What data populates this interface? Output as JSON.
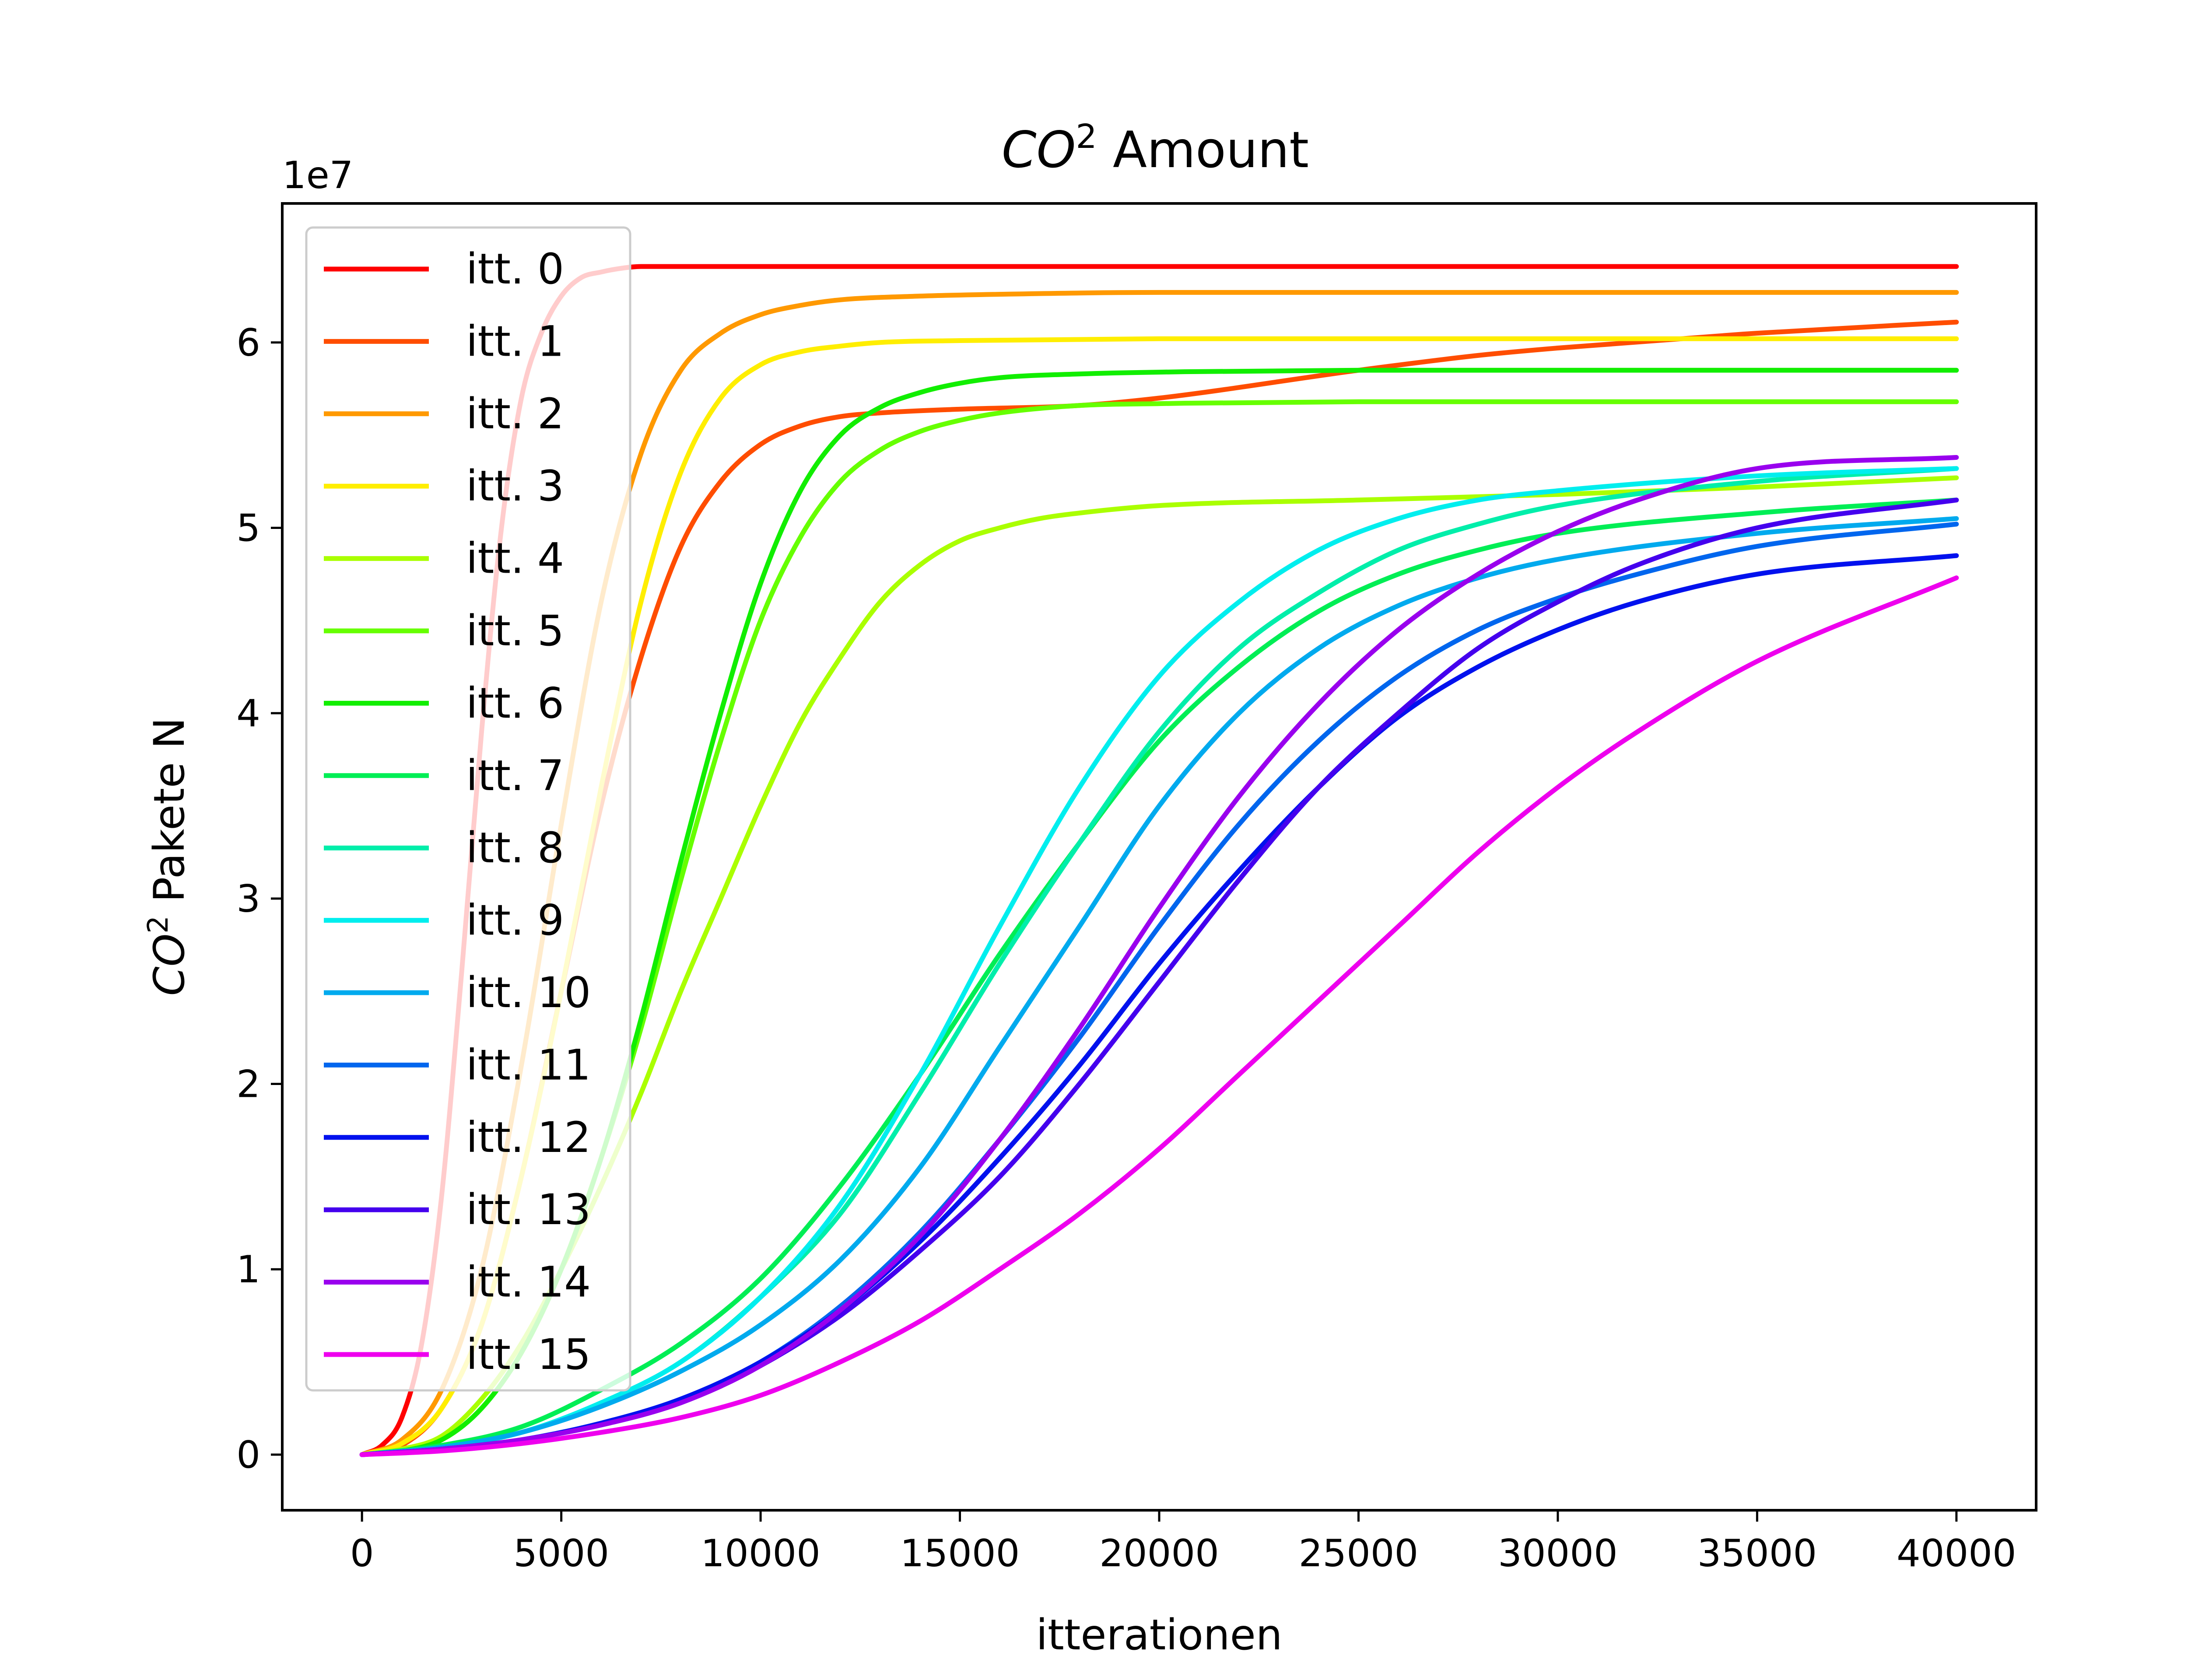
{
  "chart_data": {
    "type": "line",
    "title": {
      "main": "CO",
      "sup": "2",
      "rest": " Amount"
    },
    "xlabel": "itterationen",
    "ylabel": {
      "main": "CO",
      "sup": "2",
      "rest": " Pakete N"
    },
    "y_offset_label": "1e7",
    "xlim": [
      -2000,
      42000
    ],
    "ylim": [
      -0.3,
      6.75
    ],
    "y_scale_factor": 10000000,
    "x_ticks": [
      0,
      5000,
      10000,
      15000,
      20000,
      25000,
      30000,
      35000,
      40000
    ],
    "x_tick_labels": [
      "0",
      "5000",
      "10000",
      "15000",
      "20000",
      "25000",
      "30000",
      "35000",
      "40000"
    ],
    "y_ticks": [
      0,
      1,
      2,
      3,
      4,
      5,
      6
    ],
    "y_tick_labels": [
      "0",
      "1",
      "2",
      "3",
      "4",
      "5",
      "6"
    ],
    "grid": false,
    "legend_position": "upper-left",
    "series": [
      {
        "name": "itt. 0",
        "color": "#ff0000",
        "x": [
          0,
          500,
          1000,
          1500,
          2000,
          2500,
          3000,
          3500,
          4000,
          4500,
          5000,
          5500,
          6000,
          6500,
          7000,
          8000,
          10000,
          20000,
          30000,
          40000
        ],
        "values": [
          0,
          0.05,
          0.2,
          0.6,
          1.4,
          2.6,
          3.9,
          5.0,
          5.7,
          6.05,
          6.25,
          6.35,
          6.38,
          6.4,
          6.41,
          6.41,
          6.41,
          6.41,
          6.41,
          6.41
        ]
      },
      {
        "name": "itt. 1",
        "color": "#ff4d00",
        "x": [
          0,
          1000,
          2000,
          3000,
          4000,
          5000,
          6000,
          7000,
          8000,
          9000,
          10000,
          11000,
          12000,
          13000,
          15000,
          18000,
          20000,
          25000,
          28000,
          30000,
          35000,
          40000
        ],
        "values": [
          0,
          0.05,
          0.25,
          0.7,
          1.5,
          2.5,
          3.5,
          4.3,
          4.9,
          5.25,
          5.45,
          5.55,
          5.6,
          5.62,
          5.64,
          5.66,
          5.7,
          5.85,
          5.93,
          5.97,
          6.05,
          6.11
        ]
      },
      {
        "name": "itt. 2",
        "color": "#ff9900",
        "x": [
          0,
          1000,
          2000,
          3000,
          4000,
          5000,
          6000,
          7000,
          8000,
          9000,
          10000,
          11000,
          12000,
          14000,
          16000,
          20000,
          30000,
          40000
        ],
        "values": [
          0,
          0.08,
          0.35,
          1.0,
          2.1,
          3.4,
          4.6,
          5.4,
          5.85,
          6.05,
          6.15,
          6.2,
          6.23,
          6.25,
          6.26,
          6.27,
          6.27,
          6.27
        ]
      },
      {
        "name": "itt. 3",
        "color": "#ffee00",
        "x": [
          0,
          1000,
          2000,
          3000,
          4000,
          5000,
          6000,
          7000,
          8000,
          9000,
          10000,
          11000,
          12000,
          13000,
          15000,
          20000,
          30000,
          40000
        ],
        "values": [
          0,
          0.06,
          0.25,
          0.7,
          1.5,
          2.5,
          3.6,
          4.6,
          5.3,
          5.7,
          5.88,
          5.95,
          5.98,
          6.0,
          6.01,
          6.02,
          6.02,
          6.02
        ]
      },
      {
        "name": "itt. 4",
        "color": "#aaff00",
        "x": [
          0,
          1000,
          2000,
          3000,
          4000,
          5000,
          6000,
          7000,
          8000,
          9000,
          10000,
          11000,
          12000,
          13000,
          14000,
          15000,
          16000,
          17000,
          18000,
          20000,
          25000,
          30000,
          35000,
          40000
        ],
        "values": [
          0,
          0.03,
          0.1,
          0.3,
          0.6,
          1.0,
          1.45,
          1.95,
          2.5,
          3.0,
          3.5,
          3.95,
          4.3,
          4.6,
          4.8,
          4.93,
          5.0,
          5.05,
          5.08,
          5.12,
          5.15,
          5.18,
          5.22,
          5.27
        ]
      },
      {
        "name": "itt. 5",
        "color": "#66ff00",
        "x": [
          0,
          1000,
          2000,
          3000,
          4000,
          5000,
          6000,
          7000,
          8000,
          9000,
          10000,
          11000,
          12000,
          13000,
          14000,
          15000,
          16000,
          18000,
          20000,
          25000,
          30000,
          40000
        ],
        "values": [
          0,
          0.02,
          0.08,
          0.25,
          0.55,
          1.0,
          1.6,
          2.3,
          3.1,
          3.85,
          4.5,
          4.95,
          5.25,
          5.42,
          5.52,
          5.58,
          5.62,
          5.66,
          5.67,
          5.68,
          5.68,
          5.68
        ]
      },
      {
        "name": "itt. 6",
        "color": "#11ee00",
        "x": [
          0,
          1000,
          2000,
          3000,
          4000,
          5000,
          6000,
          7000,
          8000,
          9000,
          10000,
          11000,
          12000,
          13000,
          14000,
          15000,
          16000,
          18000,
          20000,
          25000,
          30000,
          40000
        ],
        "values": [
          0,
          0.02,
          0.08,
          0.25,
          0.55,
          1.0,
          1.6,
          2.35,
          3.2,
          4.0,
          4.7,
          5.2,
          5.5,
          5.65,
          5.73,
          5.78,
          5.81,
          5.83,
          5.84,
          5.85,
          5.85,
          5.85
        ]
      },
      {
        "name": "itt. 7",
        "color": "#00ee55",
        "x": [
          0,
          2000,
          4000,
          6000,
          8000,
          10000,
          12000,
          14000,
          16000,
          18000,
          20000,
          22000,
          24000,
          26000,
          28000,
          30000,
          35000,
          40000
        ],
        "values": [
          0,
          0.05,
          0.15,
          0.35,
          0.6,
          0.95,
          1.45,
          2.05,
          2.7,
          3.3,
          3.85,
          4.25,
          4.55,
          4.75,
          4.88,
          4.97,
          5.08,
          5.15
        ]
      },
      {
        "name": "itt. 8",
        "color": "#00eeaa",
        "x": [
          0,
          2000,
          4000,
          6000,
          8000,
          10000,
          12000,
          14000,
          16000,
          18000,
          20000,
          22000,
          24000,
          26000,
          28000,
          30000,
          35000,
          40000
        ],
        "values": [
          0,
          0.04,
          0.12,
          0.28,
          0.5,
          0.85,
          1.3,
          1.95,
          2.65,
          3.3,
          3.9,
          4.35,
          4.65,
          4.88,
          5.02,
          5.12,
          5.25,
          5.32
        ]
      },
      {
        "name": "itt. 9",
        "color": "#00eeee",
        "x": [
          0,
          2000,
          4000,
          6000,
          8000,
          10000,
          12000,
          14000,
          16000,
          18000,
          20000,
          22000,
          24000,
          26000,
          28000,
          30000,
          35000,
          40000
        ],
        "values": [
          0,
          0.04,
          0.12,
          0.28,
          0.5,
          0.85,
          1.35,
          2.05,
          2.85,
          3.6,
          4.2,
          4.6,
          4.88,
          5.05,
          5.15,
          5.2,
          5.28,
          5.32
        ]
      },
      {
        "name": "itt. 10",
        "color": "#00aaee",
        "x": [
          0,
          2000,
          4000,
          6000,
          8000,
          10000,
          12000,
          14000,
          16000,
          18000,
          20000,
          22000,
          24000,
          26000,
          28000,
          30000,
          35000,
          40000
        ],
        "values": [
          0,
          0.04,
          0.12,
          0.26,
          0.45,
          0.7,
          1.05,
          1.55,
          2.2,
          2.85,
          3.5,
          4.0,
          4.35,
          4.58,
          4.73,
          4.83,
          4.97,
          5.05
        ]
      },
      {
        "name": "itt. 11",
        "color": "#0066ee",
        "x": [
          0,
          2000,
          4000,
          6000,
          8000,
          10000,
          12000,
          14000,
          16000,
          18000,
          20000,
          22000,
          24000,
          26000,
          28000,
          30000,
          32000,
          35000,
          40000
        ],
        "values": [
          0,
          0.03,
          0.08,
          0.17,
          0.3,
          0.5,
          0.8,
          1.2,
          1.7,
          2.25,
          2.85,
          3.4,
          3.85,
          4.2,
          4.45,
          4.62,
          4.75,
          4.9,
          5.02
        ]
      },
      {
        "name": "itt. 12",
        "color": "#0011ee",
        "x": [
          0,
          2000,
          4000,
          6000,
          8000,
          10000,
          12000,
          14000,
          16000,
          18000,
          20000,
          22000,
          24000,
          26000,
          28000,
          30000,
          32000,
          35000,
          40000
        ],
        "values": [
          0,
          0.03,
          0.08,
          0.17,
          0.3,
          0.5,
          0.78,
          1.15,
          1.6,
          2.1,
          2.65,
          3.15,
          3.6,
          3.98,
          4.25,
          4.45,
          4.6,
          4.75,
          4.85
        ]
      },
      {
        "name": "itt. 13",
        "color": "#4400ee",
        "x": [
          0,
          2000,
          4000,
          6000,
          8000,
          10000,
          12000,
          14000,
          16000,
          18000,
          20000,
          22000,
          24000,
          26000,
          28000,
          30000,
          32000,
          35000,
          40000
        ],
        "values": [
          0,
          0.03,
          0.08,
          0.16,
          0.28,
          0.48,
          0.75,
          1.1,
          1.5,
          2.0,
          2.55,
          3.1,
          3.6,
          4.0,
          4.35,
          4.6,
          4.8,
          5.0,
          5.15
        ]
      },
      {
        "name": "itt. 14",
        "color": "#9900ee",
        "x": [
          0,
          2000,
          4000,
          6000,
          8000,
          10000,
          12000,
          14000,
          16000,
          18000,
          20000,
          22000,
          24000,
          26000,
          28000,
          30000,
          32000,
          35000,
          40000
        ],
        "values": [
          0,
          0.03,
          0.08,
          0.16,
          0.28,
          0.48,
          0.78,
          1.18,
          1.7,
          2.3,
          2.95,
          3.55,
          4.05,
          4.45,
          4.75,
          4.98,
          5.15,
          5.32,
          5.38
        ]
      },
      {
        "name": "itt. 15",
        "color": "#ee00ee",
        "x": [
          0,
          2000,
          4000,
          6000,
          8000,
          10000,
          12000,
          14000,
          16000,
          18000,
          20000,
          22000,
          24000,
          26000,
          28000,
          30000,
          32000,
          35000,
          40000
        ],
        "values": [
          0,
          0.02,
          0.06,
          0.12,
          0.2,
          0.32,
          0.5,
          0.72,
          1.0,
          1.3,
          1.65,
          2.05,
          2.45,
          2.85,
          3.25,
          3.6,
          3.9,
          4.28,
          4.73
        ]
      }
    ]
  }
}
